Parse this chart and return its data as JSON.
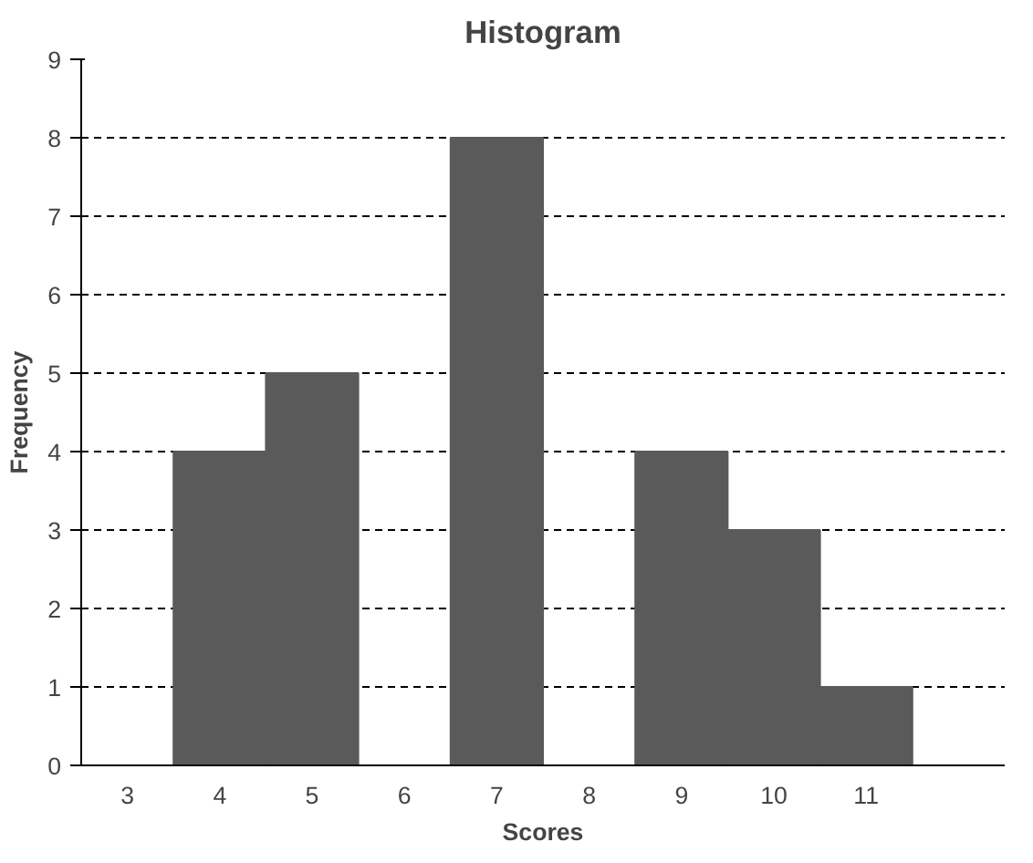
{
  "chart_data": {
    "type": "bar",
    "title": "Histogram",
    "xlabel": "Scores",
    "ylabel": "Frequency",
    "categories": [
      "3",
      "4",
      "5",
      "6",
      "7",
      "8",
      "9",
      "10",
      "11",
      null
    ],
    "values": [
      0,
      4,
      5,
      0,
      8,
      0,
      4,
      3,
      1,
      0
    ],
    "color": "#5a5a5a",
    "ylim": [
      0,
      9
    ],
    "yticks": [
      0,
      1,
      2,
      3,
      4,
      5,
      6,
      7,
      8,
      9
    ],
    "grid": "y"
  }
}
